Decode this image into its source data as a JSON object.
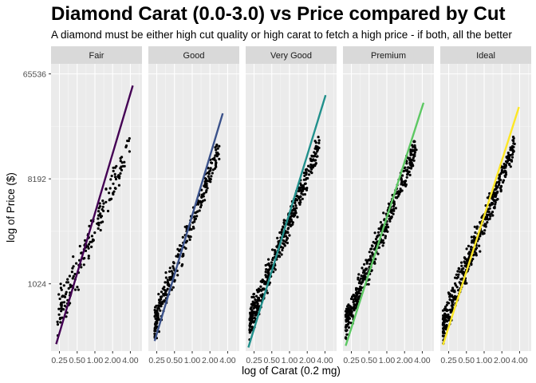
{
  "chart_data": {
    "type": "scatter",
    "title": "Diamond Carat (0.0-3.0) vs Price compared by Cut",
    "subtitle": "A diamond must be either high cut quality or high carat to fetch a high price - if both, all the better",
    "xlabel": "log of Carat (0.2 mg)",
    "ylabel": "log of Price ($)",
    "x_scale": "log2",
    "y_scale": "log2",
    "xlim": [
      0.18,
      6.3
    ],
    "ylim": [
      270,
      80000
    ],
    "x_ticks": [
      0.25,
      0.5,
      1.0,
      2.0,
      4.0
    ],
    "x_tick_labels": [
      "0.25",
      "0.50",
      "1.00",
      "2.00",
      "4.00"
    ],
    "y_ticks": [
      1024,
      8192,
      65536
    ],
    "y_tick_labels": [
      "1024",
      "8192",
      "65536"
    ],
    "grid": true,
    "legend": "none",
    "panels": [
      {
        "label": "Fair",
        "color": "#440154",
        "fit_line": {
          "x": [
            0.22,
            4.4
          ],
          "y": [
            310,
            52000
          ]
        },
        "cloud": {
          "x_range": [
            0.23,
            4.0
          ],
          "y_lo": [
            320,
            14000
          ],
          "y_hi": [
            900,
            18500
          ],
          "n": 180
        }
      },
      {
        "label": "Good",
        "color": "#3B528B",
        "fit_line": {
          "x": [
            0.23,
            3.3
          ],
          "y": [
            330,
            30000
          ]
        },
        "cloud": {
          "x_range": [
            0.23,
            3.0
          ],
          "y_lo": [
            330,
            14000
          ],
          "y_hi": [
            620,
            18500
          ],
          "n": 280
        }
      },
      {
        "label": "Very Good",
        "color": "#21908C",
        "fit_line": {
          "x": [
            0.2,
            4.1
          ],
          "y": [
            290,
            43000
          ]
        },
        "cloud": {
          "x_range": [
            0.21,
            3.2
          ],
          "y_lo": [
            330,
            14000
          ],
          "y_hi": [
            660,
            18500
          ],
          "n": 420
        }
      },
      {
        "label": "Premium",
        "color": "#5DC863",
        "fit_line": {
          "x": [
            0.2,
            4.2
          ],
          "y": [
            300,
            37000
          ]
        },
        "cloud": {
          "x_range": [
            0.2,
            3.2
          ],
          "y_lo": [
            326,
            14000
          ],
          "y_hi": [
            640,
            18500
          ],
          "n": 420
        }
      },
      {
        "label": "Ideal",
        "color": "#FDE725",
        "fit_line": {
          "x": [
            0.2,
            3.9
          ],
          "y": [
            305,
            34000
          ]
        },
        "cloud": {
          "x_range": [
            0.2,
            3.3
          ],
          "y_lo": [
            326,
            14000
          ],
          "y_hi": [
            650,
            18500
          ],
          "n": 440
        }
      }
    ]
  }
}
